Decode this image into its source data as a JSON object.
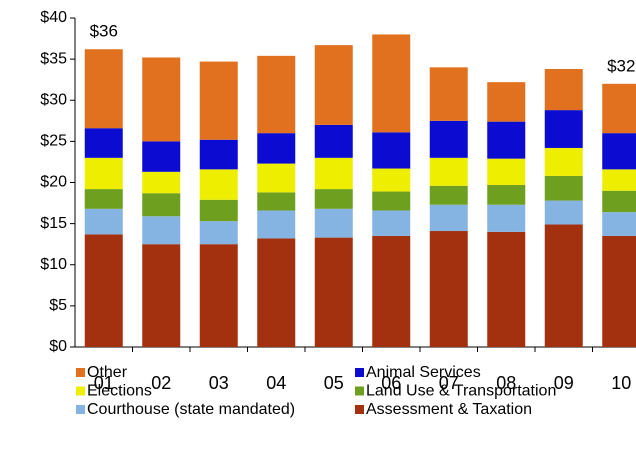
{
  "chart_data": {
    "type": "stacked_bar",
    "categories": [
      "01",
      "02",
      "03",
      "04",
      "05",
      "06",
      "07",
      "08",
      "09",
      "10"
    ],
    "series": [
      {
        "name": "Assessment & Taxation",
        "color": "#a3300f",
        "values": [
          13.7,
          12.5,
          12.5,
          13.2,
          13.3,
          13.5,
          14.1,
          14.0,
          14.9,
          13.5
        ]
      },
      {
        "name": "Courthouse (state mandated)",
        "color": "#86b4e2",
        "values": [
          3.1,
          3.4,
          2.8,
          3.4,
          3.5,
          3.1,
          3.2,
          3.3,
          2.9,
          2.9
        ]
      },
      {
        "name": "Land Use & Transportation",
        "color": "#6f9f1f",
        "values": [
          2.4,
          2.8,
          2.6,
          2.2,
          2.4,
          2.3,
          2.3,
          2.4,
          3.0,
          2.6
        ]
      },
      {
        "name": "Elections",
        "color": "#eeee00",
        "values": [
          3.8,
          2.6,
          3.7,
          3.5,
          3.8,
          2.8,
          3.4,
          3.2,
          3.4,
          2.6
        ]
      },
      {
        "name": "Animal Services",
        "color": "#0b0bd2",
        "values": [
          3.6,
          3.7,
          3.6,
          3.7,
          4.0,
          4.4,
          4.5,
          4.5,
          4.6,
          4.4
        ]
      },
      {
        "name": "Other",
        "color": "#e2711f",
        "values": [
          9.6,
          10.2,
          9.5,
          9.4,
          9.7,
          11.9,
          6.5,
          4.8,
          5.0,
          6.0
        ]
      }
    ],
    "annotations": [
      {
        "text": "$36",
        "x": "01"
      },
      {
        "text": "$32",
        "x": "10"
      }
    ],
    "ylim": [
      0,
      40
    ],
    "yticks": [
      {
        "value": 0,
        "label": "$0"
      },
      {
        "value": 5,
        "label": "$5"
      },
      {
        "value": 10,
        "label": "$10"
      },
      {
        "value": 15,
        "label": "$15"
      },
      {
        "value": 20,
        "label": "$20"
      },
      {
        "value": 25,
        "label": "$25"
      },
      {
        "value": 30,
        "label": "$30"
      },
      {
        "value": 35,
        "label": "$35"
      },
      {
        "value": 40,
        "label": "$40"
      }
    ],
    "grid": false
  }
}
